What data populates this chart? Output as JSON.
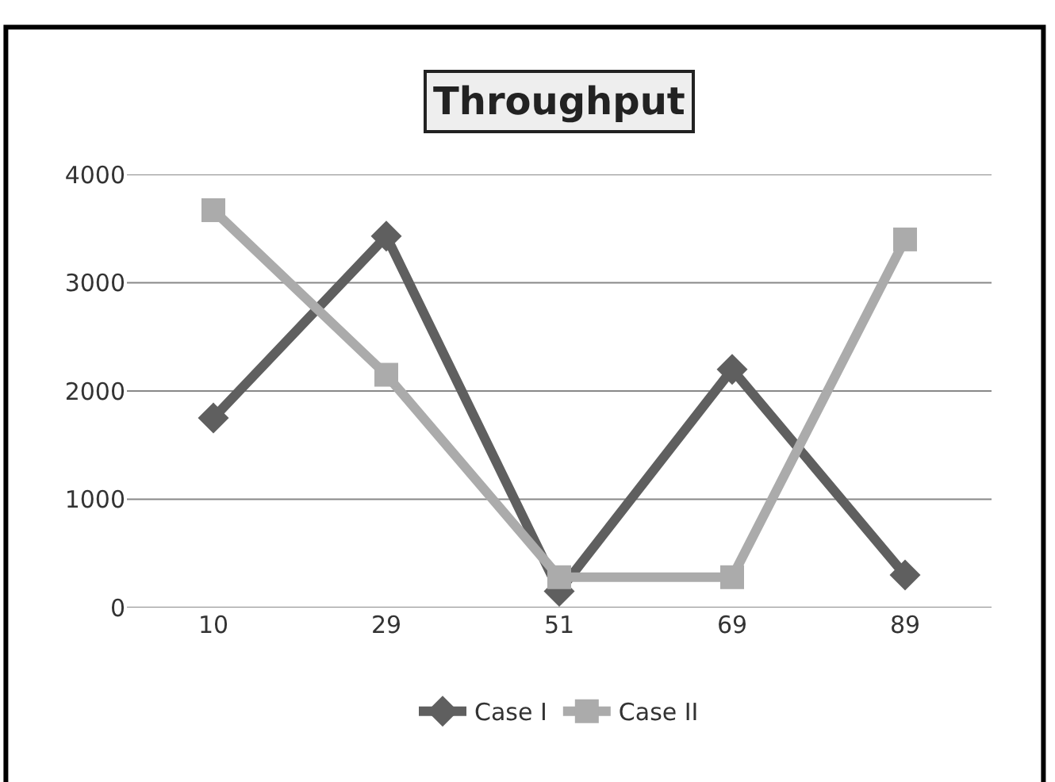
{
  "chart_data": {
    "type": "line",
    "title": "Throughput",
    "categories": [
      "10",
      "29",
      "51",
      "69",
      "89"
    ],
    "series": [
      {
        "name": "Case I",
        "color": "#5f5f5f",
        "values": [
          1750,
          3430,
          150,
          2200,
          300
        ],
        "marker": "diamond"
      },
      {
        "name": "Case II",
        "color": "#ababab",
        "values": [
          3670,
          2150,
          280,
          280,
          3400
        ],
        "marker": "square"
      }
    ],
    "ylim": [
      0,
      4000
    ],
    "yticks": [
      0,
      1000,
      2000,
      3000,
      4000
    ],
    "grid": "y",
    "legend": "bottom",
    "line_style": "solid"
  }
}
